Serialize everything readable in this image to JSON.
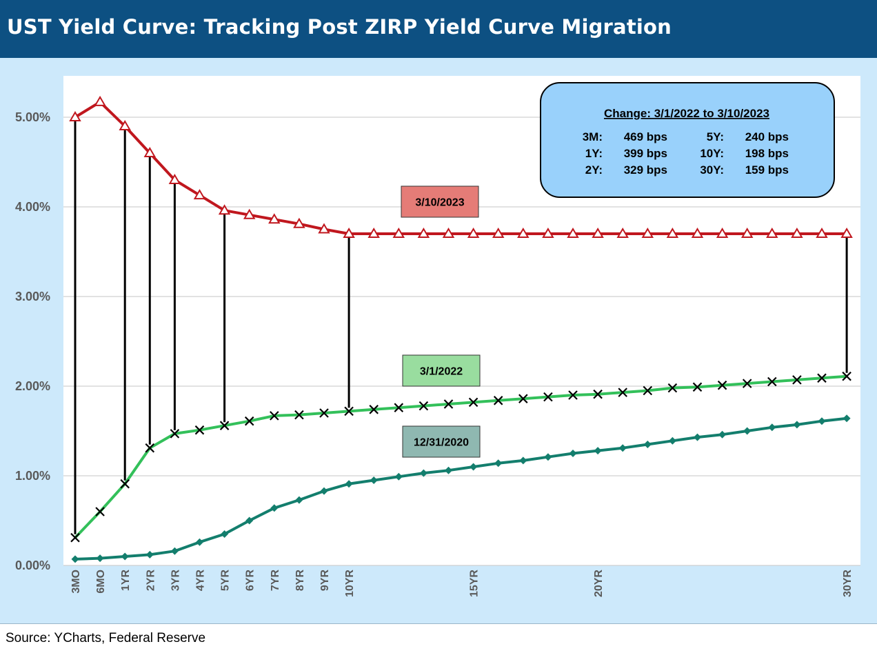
{
  "header": {
    "title": "UST Yield Curve: Tracking Post ZIRP Yield Curve Migration"
  },
  "footer": {
    "source": "Source: YCharts, Federal Reserve"
  },
  "colors": {
    "title_bar": "#0d5082",
    "background": "#cde9fb",
    "series_2023": "#c0171e",
    "series_2022": "#33c05a",
    "series_2020": "#137e6d",
    "change_box": "#99d1fb"
  },
  "change_box": {
    "title": "Change: 3/1/2022 to 3/10/2023",
    "rows": [
      {
        "l_label": "3M:",
        "l_value": "469 bps",
        "r_label": "5Y:",
        "r_value": "240 bps"
      },
      {
        "l_label": "1Y:",
        "l_value": "399 bps",
        "r_label": "10Y:",
        "r_value": "198 bps"
      },
      {
        "l_label": "2Y:",
        "l_value": "329 bps",
        "r_label": "30Y:",
        "r_value": "159 bps"
      }
    ]
  },
  "chart_data": {
    "type": "line",
    "title": "UST Yield Curve: Tracking Post ZIRP Yield Curve Migration",
    "xlabel": "",
    "ylabel": "",
    "ylim": [
      0,
      0.055
    ],
    "yticks": [
      "0.00%",
      "1.00%",
      "2.00%",
      "3.00%",
      "4.00%",
      "5.00%"
    ],
    "grid": true,
    "x_tick_labels": [
      "3MO",
      "6MO",
      "1YR",
      "2YR",
      "3YR",
      "4YR",
      "5YR",
      "6YR",
      "7YR",
      "8YR",
      "9YR",
      "10YR",
      "15YR",
      "20YR",
      "30YR"
    ],
    "x_tick_positions": [
      0,
      1,
      2,
      3,
      4,
      5,
      6,
      7,
      8,
      9,
      10,
      11,
      16,
      21,
      31
    ],
    "x": [
      "3MO",
      "6MO",
      "1YR",
      "2YR",
      "3YR",
      "4YR",
      "5YR",
      "6YR",
      "7YR",
      "8YR",
      "9YR",
      "10YR",
      "11YR",
      "12YR",
      "13YR",
      "14YR",
      "15YR",
      "16YR",
      "17YR",
      "18YR",
      "19YR",
      "20YR",
      "21YR",
      "22YR",
      "23YR",
      "24YR",
      "25YR",
      "26YR",
      "27YR",
      "28YR",
      "29YR",
      "30YR"
    ],
    "series": [
      {
        "name": "3/10/2023",
        "marker": "triangle",
        "values": [
          5.0,
          5.17,
          4.9,
          4.6,
          4.3,
          4.13,
          3.96,
          3.91,
          3.86,
          3.81,
          3.75,
          3.7,
          3.7,
          3.7,
          3.7,
          3.7,
          3.7,
          3.7,
          3.7,
          3.7,
          3.7,
          3.7,
          3.7,
          3.7,
          3.7,
          3.7,
          3.7,
          3.7,
          3.7,
          3.7,
          3.7,
          3.7
        ]
      },
      {
        "name": "3/1/2022",
        "marker": "x",
        "values": [
          0.31,
          0.6,
          0.91,
          1.31,
          1.47,
          1.51,
          1.56,
          1.61,
          1.67,
          1.68,
          1.7,
          1.72,
          1.74,
          1.76,
          1.78,
          1.8,
          1.82,
          1.84,
          1.86,
          1.88,
          1.9,
          1.91,
          1.93,
          1.95,
          1.98,
          1.99,
          2.01,
          2.03,
          2.05,
          2.07,
          2.09,
          2.11
        ]
      },
      {
        "name": "12/31/2020",
        "marker": "diamond",
        "values": [
          0.07,
          0.08,
          0.1,
          0.12,
          0.16,
          0.26,
          0.35,
          0.5,
          0.64,
          0.73,
          0.83,
          0.91,
          0.95,
          0.99,
          1.03,
          1.06,
          1.1,
          1.14,
          1.17,
          1.21,
          1.25,
          1.28,
          1.31,
          1.35,
          1.39,
          1.43,
          1.46,
          1.5,
          1.54,
          1.57,
          1.61,
          1.64
        ]
      }
    ],
    "change_lines_at": [
      "3MO",
      "1YR",
      "2YR",
      "3YR",
      "5YR",
      "10YR",
      "30YR"
    ],
    "series_labels": [
      {
        "text": "3/10/2023",
        "series": "3/10/2023"
      },
      {
        "text": "3/1/2022",
        "series": "3/1/2022"
      },
      {
        "text": "12/31/2020",
        "series": "12/31/2020"
      }
    ]
  }
}
